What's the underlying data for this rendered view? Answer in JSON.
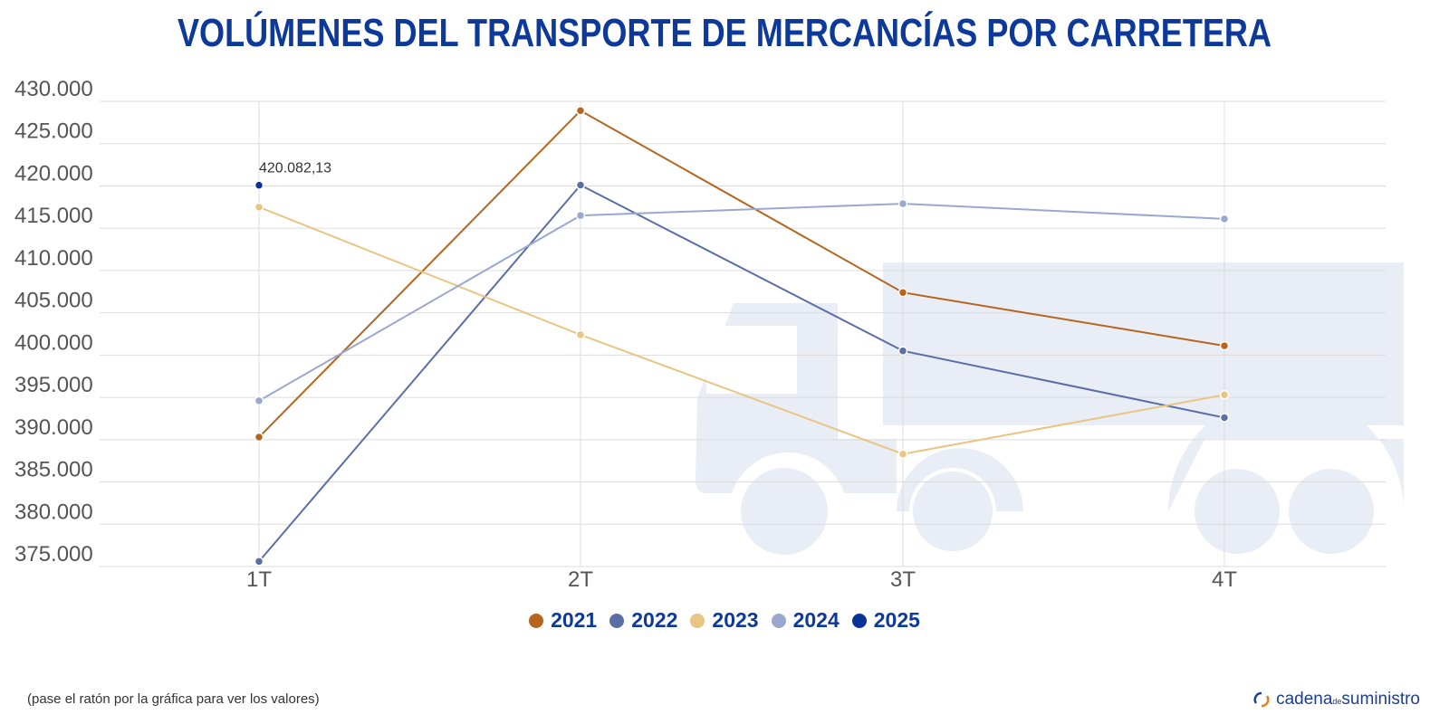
{
  "chart_data": {
    "type": "line",
    "title": "VOLÚMENES DEL TRANSPORTE DE MERCANCÍAS POR CARRETERA",
    "categories": [
      "1T",
      "2T",
      "3T",
      "4T"
    ],
    "ylim": [
      375000,
      430000
    ],
    "yticks": [
      375000,
      380000,
      385000,
      390000,
      395000,
      400000,
      405000,
      410000,
      415000,
      420000,
      425000,
      430000
    ],
    "ytick_labels": [
      "375.000",
      "380.000",
      "385.000",
      "390.000",
      "395.000",
      "400.000",
      "405.000",
      "410.000",
      "415.000",
      "420.000",
      "425.000",
      "430.000"
    ],
    "grid": true,
    "legend_position": "bottom",
    "series": [
      {
        "name": "2021",
        "color": "#b5651d",
        "values": [
          390300,
          428900,
          407400,
          401100
        ]
      },
      {
        "name": "2022",
        "color": "#5b6ea5",
        "values": [
          375600,
          420100,
          400500,
          392600
        ]
      },
      {
        "name": "2023",
        "color": "#e8c582",
        "values": [
          417500,
          402400,
          388300,
          395300
        ]
      },
      {
        "name": "2024",
        "color": "#9aa8cf",
        "values": [
          394600,
          416500,
          417900,
          416100
        ]
      },
      {
        "name": "2025",
        "color": "#0a3399",
        "values": [
          420082.13,
          null,
          null,
          null
        ]
      }
    ],
    "annotations": [
      {
        "series": "2025",
        "category": "1T",
        "label": "420.082,13"
      }
    ]
  },
  "footer": {
    "note": "(pase el ratón por la gráfica para ver los valores)",
    "logo_text_a": "cadena",
    "logo_text_b": "de",
    "logo_text_c": "suministro"
  }
}
